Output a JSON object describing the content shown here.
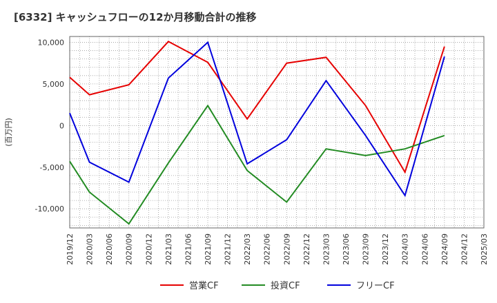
{
  "chart_data": {
    "type": "line",
    "title": "[6332]  キャッシュフローの12か月移動合計の推移",
    "ylabel": "(百万円)",
    "xlabel": "",
    "ylim": [
      -12300,
      10700
    ],
    "yticks": [
      10000,
      5000,
      0,
      -5000,
      -10000
    ],
    "ytick_labels": [
      "10,000",
      "5,000",
      "0",
      "-5,000",
      "-10,000"
    ],
    "categories": [
      "2019/12",
      "2020/03",
      "2020/06",
      "2020/09",
      "2020/12",
      "2021/03",
      "2021/06",
      "2021/09",
      "2021/12",
      "2022/03",
      "2022/06",
      "2022/09",
      "2022/12",
      "2023/03",
      "2023/06",
      "2023/09",
      "2023/12",
      "2024/03",
      "2024/06",
      "2024/09",
      "2024/12",
      "2025/03"
    ],
    "series": [
      {
        "name": "営業CF",
        "color": "#e60000",
        "values": [
          5800,
          3700,
          null,
          4900,
          null,
          10100,
          null,
          7600,
          null,
          800,
          null,
          7500,
          null,
          8200,
          null,
          2400,
          null,
          -5600,
          null,
          9500,
          null,
          null
        ]
      },
      {
        "name": "投資CF",
        "color": "#228b22",
        "values": [
          -4300,
          -8000,
          null,
          -11800,
          null,
          -4500,
          null,
          2400,
          null,
          -5400,
          null,
          -9200,
          null,
          -2800,
          null,
          -3600,
          null,
          -2800,
          null,
          -1200,
          null,
          null
        ]
      },
      {
        "name": "フリーCF",
        "color": "#0000dd",
        "values": [
          1500,
          -4400,
          null,
          -6800,
          null,
          5700,
          null,
          10000,
          null,
          -4600,
          null,
          -1700,
          null,
          5400,
          null,
          -1200,
          null,
          -8400,
          null,
          8300,
          null,
          null
        ]
      }
    ],
    "grid": true,
    "legend_position": "bottom"
  }
}
